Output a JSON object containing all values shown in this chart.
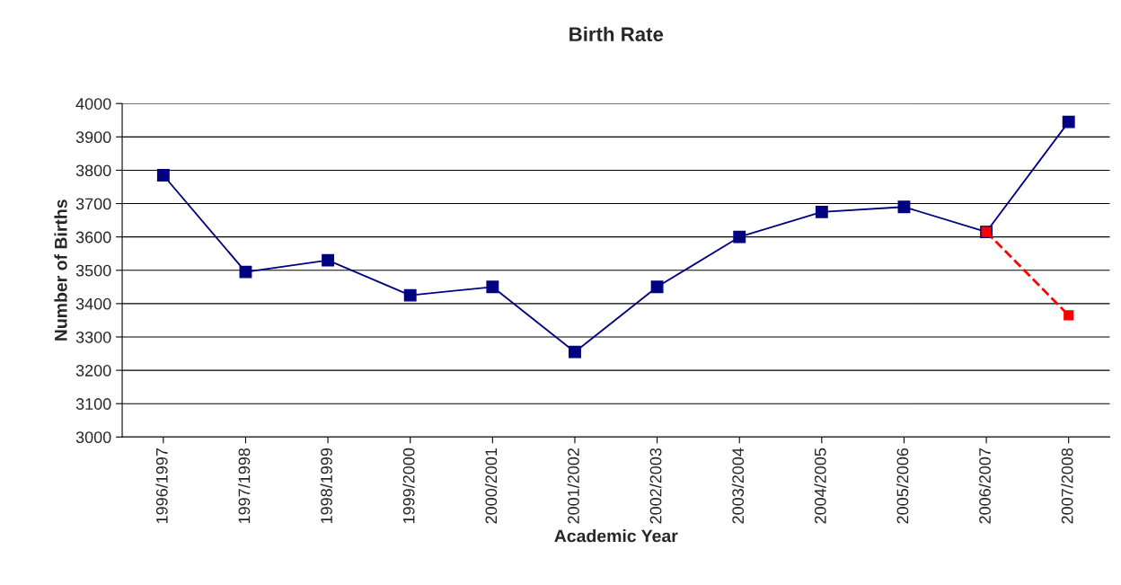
{
  "chart_data": {
    "type": "line",
    "title": "Birth Rate",
    "xlabel": "Academic Year",
    "ylabel": "Number of Births",
    "categories": [
      "1996/1997",
      "1997/1998",
      "1998/1999",
      "1999/2000",
      "2000/2001",
      "2001/2002",
      "2002/2003",
      "2003/2004",
      "2004/2005",
      "2005/2006",
      "2006/2007",
      "2007/2008"
    ],
    "series": [
      {
        "color": "#000080",
        "line_style": "solid",
        "values": [
          3785,
          3495,
          3530,
          3425,
          3450,
          3255,
          3450,
          3600,
          3675,
          3690,
          3615,
          3945
        ]
      },
      {
        "color": "#ff0000",
        "line_style": "dashed",
        "values": [
          null,
          null,
          null,
          null,
          null,
          null,
          null,
          null,
          null,
          null,
          3615,
          3365
        ]
      }
    ],
    "ylim": [
      3000,
      4000
    ],
    "yticks": [
      3000,
      3100,
      3200,
      3300,
      3400,
      3500,
      3600,
      3700,
      3800,
      3900,
      4000
    ],
    "grid": "y",
    "marker": "square",
    "legend": false
  }
}
